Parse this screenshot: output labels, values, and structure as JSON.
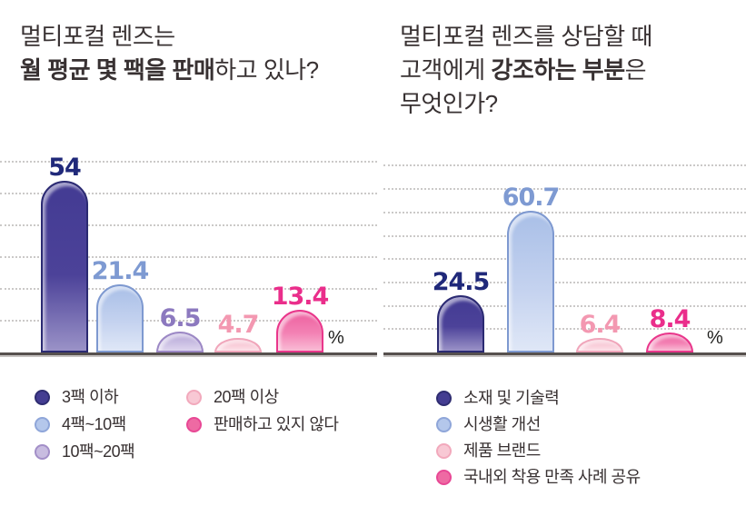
{
  "colors": {
    "background": "#ffffff",
    "grid": "#cbc9c8",
    "axis": "#56504e",
    "axis_shadow": "#c6c2c0",
    "title_text": "#383132",
    "legend_text": "#383132",
    "unit_text": "#1d1d1b",
    "palette": {
      "indigo": {
        "fill_top": "#433b93",
        "fill_mid": "#4c4299",
        "fill_bottom": "#9a92c7",
        "border": "#2b2a72",
        "label": "#20297a",
        "swatch": "#443d92",
        "swatch_border": "#2f2d71"
      },
      "blue": {
        "fill_top": "#a9bfe7",
        "fill_mid": "#c4d2ef",
        "fill_bottom": "#dfe7f7",
        "border": "#7e99d0",
        "label": "#7e9ad2",
        "swatch": "#b4c7eb",
        "swatch_border": "#8fa6d9"
      },
      "lavender": {
        "fill_top": "#b3a3d6",
        "fill_mid": "#cabfe3",
        "fill_bottom": "#ded5ee",
        "border": "#9c88c5",
        "label": "#8c79bf",
        "swatch": "#c8bce0",
        "swatch_border": "#a38fc8"
      },
      "pale_pink": {
        "fill_top": "#f5b8c9",
        "fill_mid": "#f9cdd9",
        "fill_bottom": "#fce3ea",
        "border": "#f0a5ba",
        "label": "#f398b1",
        "swatch": "#f8c8d4",
        "swatch_border": "#f2a9bc"
      },
      "hot_pink": {
        "fill_top": "#ed5f9f",
        "fill_mid": "#f382b4",
        "fill_bottom": "#f9bcd5",
        "border": "#e9368b",
        "label": "#ea2e8b",
        "swatch": "#ee6aa3",
        "swatch_border": "#e84895"
      }
    }
  },
  "chart_data": [
    {
      "type": "bar",
      "title": "멀티포컬 렌즈는 월 평균 몇 팩을 판매하고 있나?",
      "title_segments": [
        {
          "text": "멀티포컬 렌즈는",
          "bold": false,
          "break_after": true
        },
        {
          "text": "월 평균 몇 팩을 판매",
          "bold": true,
          "break_after": false
        },
        {
          "text": "하고 있나?",
          "bold": false,
          "break_after": false
        }
      ],
      "categories": [
        "3팩 이하",
        "4팩~10팩",
        "10팩~20팩",
        "20팩 이상",
        "판매하고 있지 않다"
      ],
      "values": [
        54,
        21.4,
        6.5,
        4.7,
        13.4
      ],
      "unit": "%",
      "xlabel": "",
      "ylabel": "",
      "ylim": [
        0,
        60
      ],
      "grid_step": 10,
      "grid": "dotted-horizontal",
      "legend_position": "bottom",
      "series_colors": [
        "indigo",
        "blue",
        "lavender",
        "pale_pink",
        "hot_pink"
      ],
      "legend_columns": [
        [
          0,
          1,
          2
        ],
        [
          3,
          4
        ]
      ]
    },
    {
      "type": "bar",
      "title": "멀티포컬 렌즈를 상담할 때 고객에게 강조하는 부분은 무엇인가?",
      "title_segments": [
        {
          "text": "멀티포컬 렌즈를 상담할 때",
          "bold": false,
          "break_after": true
        },
        {
          "text": "고객에게 ",
          "bold": false,
          "break_after": false
        },
        {
          "text": "강조하는 부분",
          "bold": true,
          "break_after": false
        },
        {
          "text": "은",
          "bold": false,
          "break_after": true
        },
        {
          "text": "무엇인가?",
          "bold": false,
          "break_after": false
        }
      ],
      "categories": [
        "소재 및 기술력",
        "시생활 개선",
        "제품 브랜드",
        "국내외 착용 만족 사례 공유"
      ],
      "values": [
        24.5,
        60.7,
        6.4,
        8.4
      ],
      "unit": "%",
      "xlabel": "",
      "ylabel": "",
      "ylim": [
        0,
        80
      ],
      "grid_step": 10,
      "grid": "dotted-horizontal",
      "legend_position": "bottom",
      "series_colors": [
        "indigo",
        "blue",
        "pale_pink",
        "hot_pink"
      ],
      "legend_columns": [
        [
          0,
          1,
          2,
          3
        ]
      ]
    }
  ]
}
